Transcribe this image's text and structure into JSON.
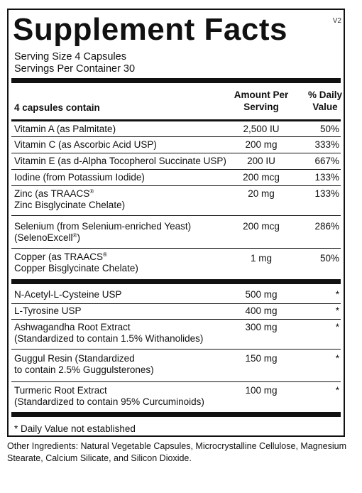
{
  "version": "V2",
  "title": "Supplement Facts",
  "serving_size": "Serving Size 4 Capsules",
  "servings_per_container": "Servings Per Container 30",
  "header": {
    "contain": "4 capsules contain",
    "amount_line1": "Amount Per",
    "amount_line2": "Serving",
    "dv_line1": "% Daily",
    "dv_line2": "Value"
  },
  "rows": [
    {
      "name1": "Vitamin A (as Palmitate)",
      "amount": "2,500 IU",
      "dv": "50%"
    },
    {
      "name1": "Vitamin C (as Ascorbic Acid USP)",
      "amount": "200 mg",
      "dv": "333%"
    },
    {
      "name1": "Vitamin E (as d-Alpha Tocopherol Succinate USP)",
      "amount": "200 IU",
      "dv": "667%"
    },
    {
      "name1": "Iodine (from Potassium Iodide)",
      "amount": "200 mcg",
      "dv": "133%"
    },
    {
      "name1": "Zinc (as TRAACS",
      "reg1": "®",
      "name2": "Zinc Bisglycinate Chelate)",
      "amount": "20 mg",
      "dv": "133%"
    },
    {
      "name1": "Selenium (from Selenium-enriched Yeast)",
      "name2": "(SelenoExcell",
      "reg2": "®",
      "name2b": ")",
      "amount": "200 mcg",
      "dv": "286%"
    },
    {
      "name1": "Copper (as TRAACS",
      "reg1": "®",
      "name2": "Copper Bisglycinate Chelate)",
      "amount": "1 mg",
      "dv": "50%"
    },
    {
      "name1": "N-Acetyl-L-Cysteine USP",
      "amount": "500 mg",
      "dv": "*"
    },
    {
      "name1": "L-Tyrosine USP",
      "amount": "400 mg",
      "dv": "*"
    },
    {
      "name1": "Ashwagandha Root Extract",
      "name2": "(Standardized to contain 1.5% Withanolides)",
      "amount": "300 mg",
      "dv": "*"
    },
    {
      "name1": "Guggul Resin (Standardized",
      "name2": "to contain 2.5% Guggulsterones)",
      "amount": "150 mg",
      "dv": "*"
    },
    {
      "name1": "Turmeric Root Extract",
      "name2": "(Standardized to contain 95% Curcuminoids)",
      "amount": "100 mg",
      "dv": "*"
    }
  ],
  "footnote": "* Daily Value not established",
  "other_ingredients": "Other Ingredients: Natural Vegetable Capsules, Microcrystalline Cellulose, Magnesium Stearate, Calcium Silicate, and Silicon Dioxide."
}
